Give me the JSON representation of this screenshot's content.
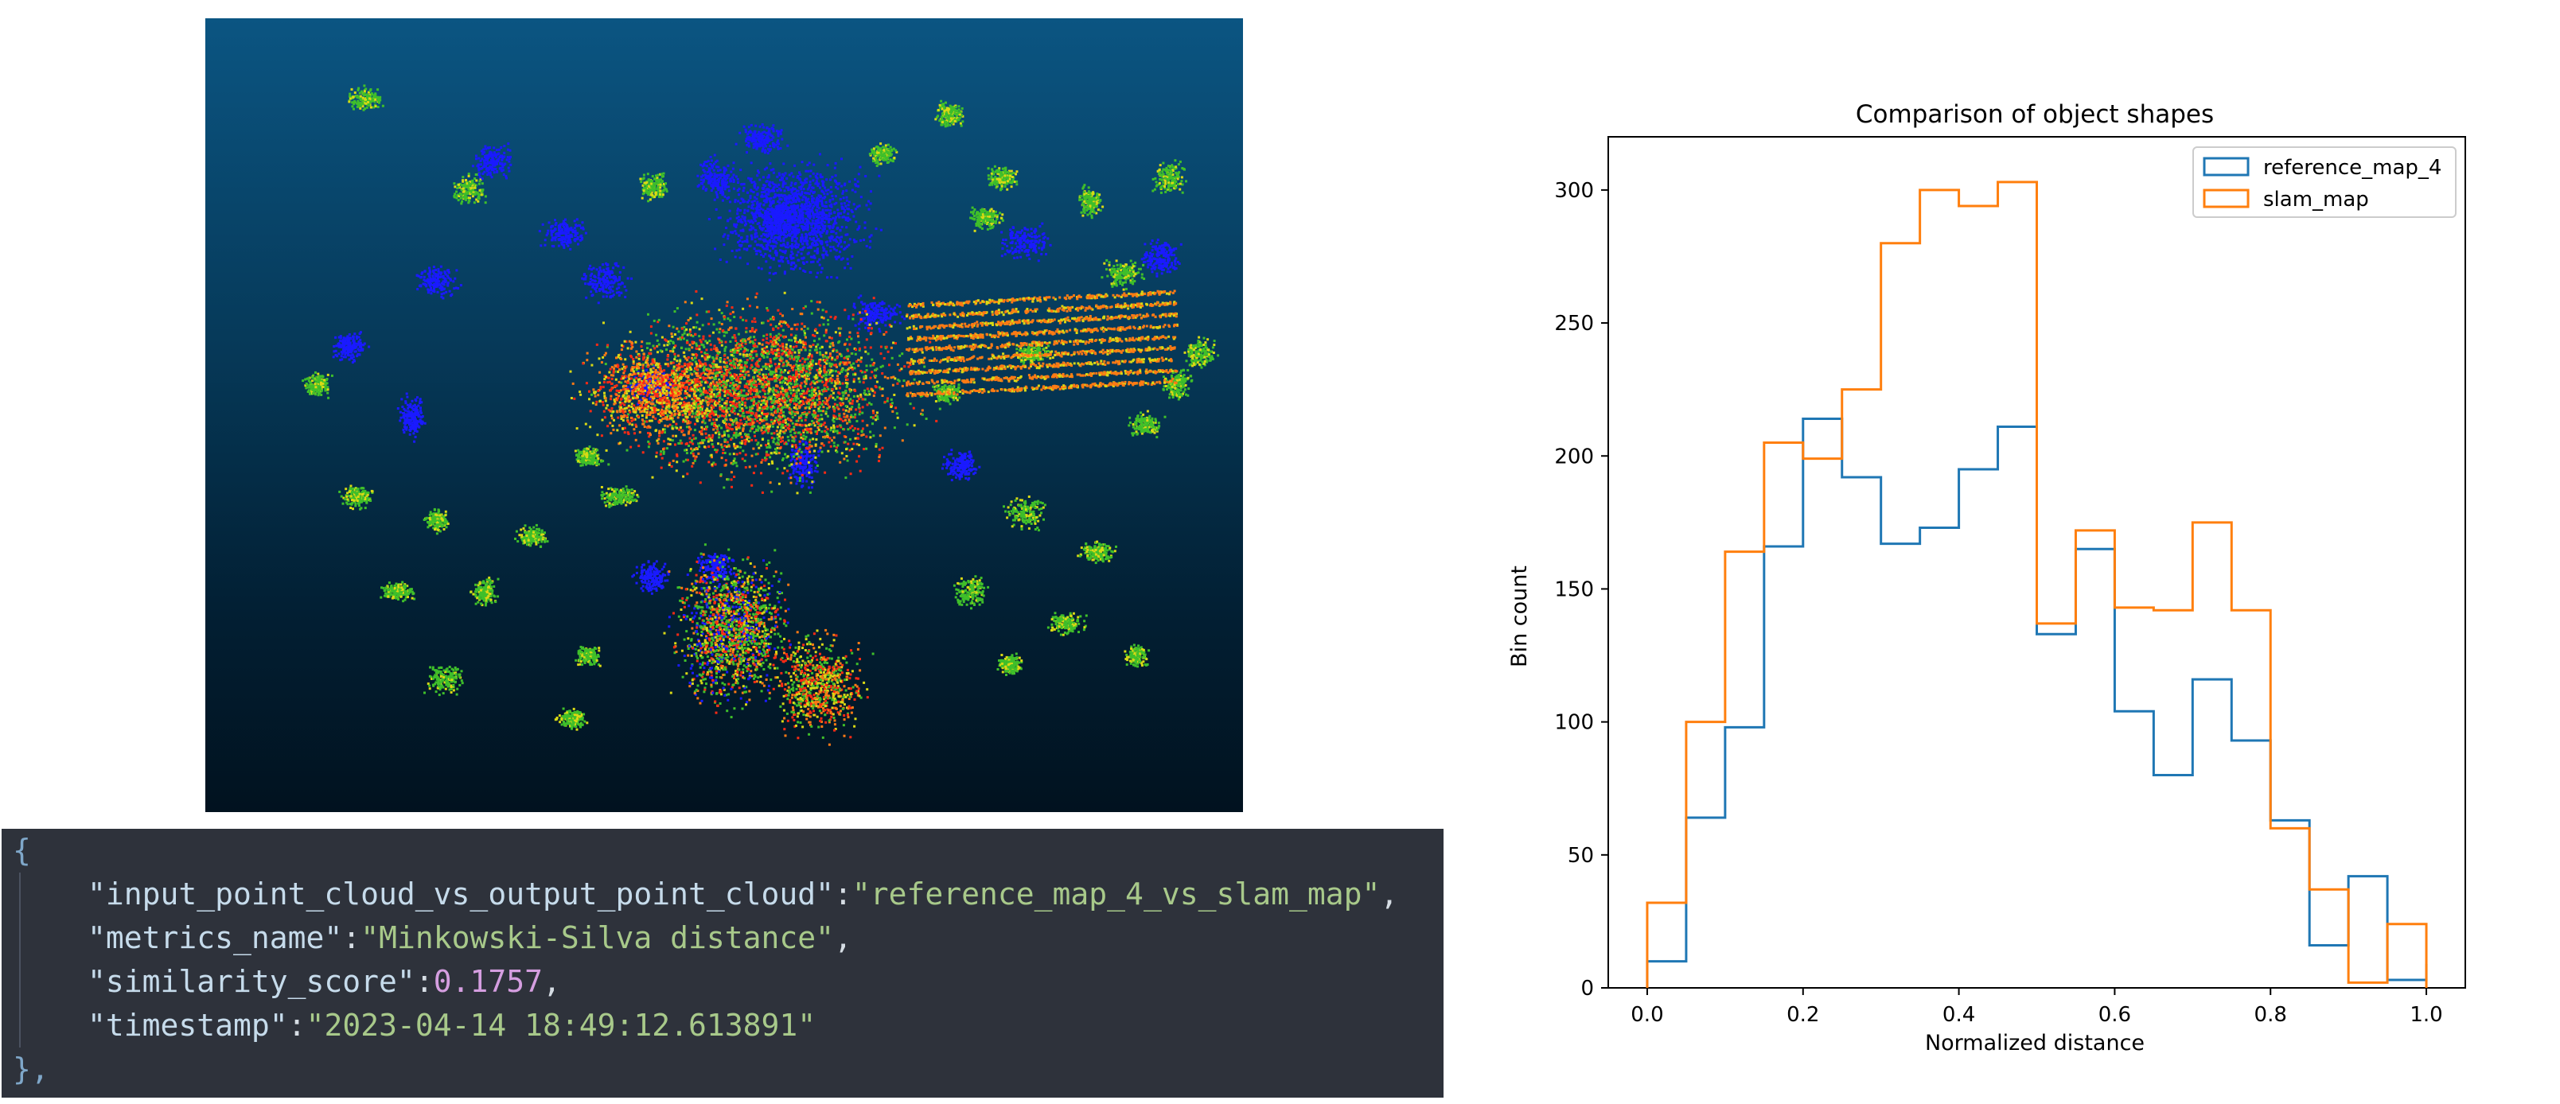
{
  "json_snippet": {
    "open": "{",
    "close": "},",
    "pairs": [
      {
        "key": "\"input_point_cloud_vs_output_point_cloud\"",
        "value": "\"reference_map_4_vs_slam_map\"",
        "type": "string"
      },
      {
        "key": "\"metrics_name\"",
        "value": "\"Minkowski-Silva distance\"",
        "type": "string"
      },
      {
        "key": "\"similarity_score\"",
        "value": "0.1757",
        "type": "number"
      },
      {
        "key": "\"timestamp\"",
        "value": "\"2023-04-14 18:49:12.613891\"",
        "type": "string"
      }
    ]
  },
  "pointcloud": {
    "colors": {
      "blue": "#1a1aff",
      "green": "#3fbf2a",
      "yellow": "#d9d914",
      "orange": "#ff7a14",
      "red": "#ff2a14"
    }
  },
  "chart_data": {
    "type": "step",
    "title": "Comparison of object shapes",
    "xlabel": "Normalized distance",
    "ylabel": "Bin count",
    "xlim": [
      -0.05,
      1.05
    ],
    "ylim": [
      0,
      320
    ],
    "xticks": [
      0.0,
      0.2,
      0.4,
      0.6,
      0.8,
      1.0
    ],
    "xtick_labels": [
      "0.0",
      "0.2",
      "0.4",
      "0.6",
      "0.8",
      "1.0"
    ],
    "yticks": [
      0,
      50,
      100,
      150,
      200,
      250,
      300
    ],
    "ytick_labels": [
      "0",
      "50",
      "100",
      "150",
      "200",
      "250",
      "300"
    ],
    "bin_edges": [
      0.0,
      0.05,
      0.1,
      0.15,
      0.2,
      0.25,
      0.3,
      0.35,
      0.4,
      0.45,
      0.5,
      0.55,
      0.6,
      0.65,
      0.7,
      0.75,
      0.8,
      0.85,
      0.9,
      0.95,
      1.0
    ],
    "legend_position": "top-right",
    "grid": false,
    "series": [
      {
        "name": "reference_map_4",
        "color": "#1f77b4",
        "values": [
          10,
          64,
          98,
          166,
          214,
          192,
          167,
          173,
          195,
          211,
          133,
          165,
          104,
          80,
          116,
          93,
          63,
          16,
          42,
          3,
          9
        ]
      },
      {
        "name": "slam_map",
        "color": "#ff7f0e",
        "values": [
          32,
          100,
          164,
          205,
          199,
          225,
          280,
          300,
          294,
          303,
          137,
          172,
          143,
          142,
          175,
          142,
          60,
          37,
          2,
          24,
          0
        ]
      }
    ]
  }
}
